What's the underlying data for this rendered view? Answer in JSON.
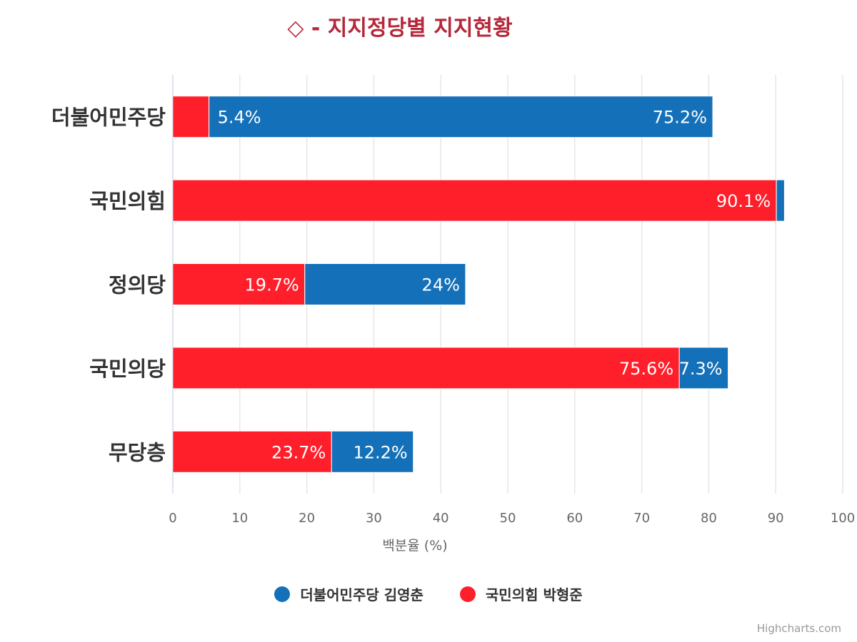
{
  "title": "◇ - 지지정당별 지지현황",
  "credits": "Highcharts.com",
  "colors": {
    "series0": "#1470b8",
    "series1": "#ff1f2b",
    "title": "#b5273a",
    "grid": "#e6e6e6"
  },
  "legend": [
    {
      "label": "더불어민주당 김영춘",
      "color": "#1470b8"
    },
    {
      "label": "국민의힘 박형준",
      "color": "#ff1f2b"
    }
  ],
  "chart_data": {
    "type": "bar",
    "stacked": true,
    "categories": [
      "더불어민주당",
      "국민의힘",
      "정의당",
      "국민의당",
      "무당층"
    ],
    "series": [
      {
        "name": "국민의힘 박형준",
        "color": "#ff1f2b",
        "values": [
          5.4,
          90.1,
          19.7,
          75.6,
          23.7
        ],
        "labels": [
          "",
          "90.1%",
          "19.7%",
          "75.6%",
          "23.7%"
        ]
      },
      {
        "name": "더불어민주당 김영춘",
        "color": "#1470b8",
        "values": [
          75.2,
          1.2,
          24,
          7.3,
          12.2
        ],
        "labels": [
          "75.2%",
          "",
          "24%",
          "7.3%",
          "12.2%"
        ]
      }
    ],
    "extra_labels": [
      {
        "category_index": 0,
        "series_index": 1,
        "text": "5.4%"
      }
    ],
    "xlabel": "",
    "ylabel": "백분율 (%)",
    "ylim": [
      0,
      100
    ],
    "ticks": [
      0,
      10,
      20,
      30,
      40,
      50,
      60,
      70,
      80,
      90,
      100
    ],
    "grid": true,
    "legend_position": "bottom"
  }
}
